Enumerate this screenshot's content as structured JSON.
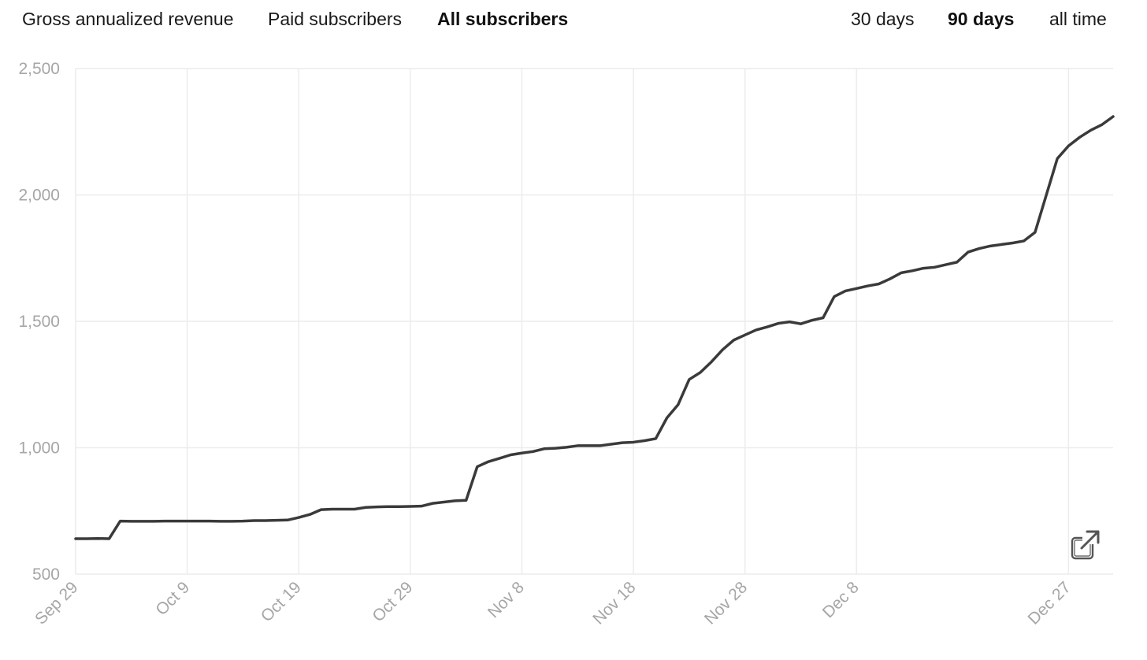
{
  "metric_tabs": [
    {
      "label": "Gross annualized revenue",
      "active": false
    },
    {
      "label": "Paid subscribers",
      "active": false
    },
    {
      "label": "All subscribers",
      "active": true
    }
  ],
  "range_tabs": [
    {
      "label": "30 days",
      "active": false
    },
    {
      "label": "90 days",
      "active": true
    },
    {
      "label": "all time",
      "active": false
    }
  ],
  "open_icon": "external-link-icon",
  "colors": {
    "line": "#3a3a3a",
    "grid": "#ececec",
    "tick_label": "#a6a6a6"
  },
  "chart_data": {
    "type": "line",
    "title": "",
    "xlabel": "",
    "ylabel": "",
    "ylim": [
      500,
      2500
    ],
    "grid": true,
    "yticks": [
      500,
      1000,
      1500,
      2000,
      2500
    ],
    "ytick_labels": [
      "500",
      "1,000",
      "1,500",
      "2,000",
      "2,500"
    ],
    "xticks": [
      "Sep 29",
      "Oct 9",
      "Oct 19",
      "Oct 29",
      "Nov 8",
      "Nov 18",
      "Nov 28",
      "Dec 8",
      "Dec 27"
    ],
    "xtick_day_index": [
      0,
      10,
      20,
      30,
      40,
      50,
      60,
      70,
      89
    ],
    "series": [
      {
        "values": [
          640,
          640,
          641,
          640,
          710,
          709,
          709,
          709,
          710,
          710,
          710,
          710,
          710,
          709,
          709,
          710,
          712,
          712,
          713,
          714,
          724,
          736,
          755,
          757,
          757,
          757,
          764,
          766,
          767,
          767,
          768,
          769,
          780,
          785,
          790,
          792,
          925,
          945,
          958,
          972,
          979,
          985,
          996,
          998,
          1002,
          1008,
          1008,
          1008,
          1014,
          1020,
          1022,
          1028,
          1036,
          1118,
          1170,
          1270,
          1298,
          1340,
          1388,
          1426,
          1446,
          1466,
          1478,
          1492,
          1498,
          1490,
          1504,
          1514,
          1598,
          1620,
          1630,
          1640,
          1648,
          1668,
          1692,
          1700,
          1710,
          1714,
          1724,
          1734,
          1774,
          1788,
          1798,
          1804,
          1810,
          1818,
          1852,
          1998,
          2144,
          2194,
          2228,
          2256,
          2278,
          2310
        ]
      }
    ]
  }
}
